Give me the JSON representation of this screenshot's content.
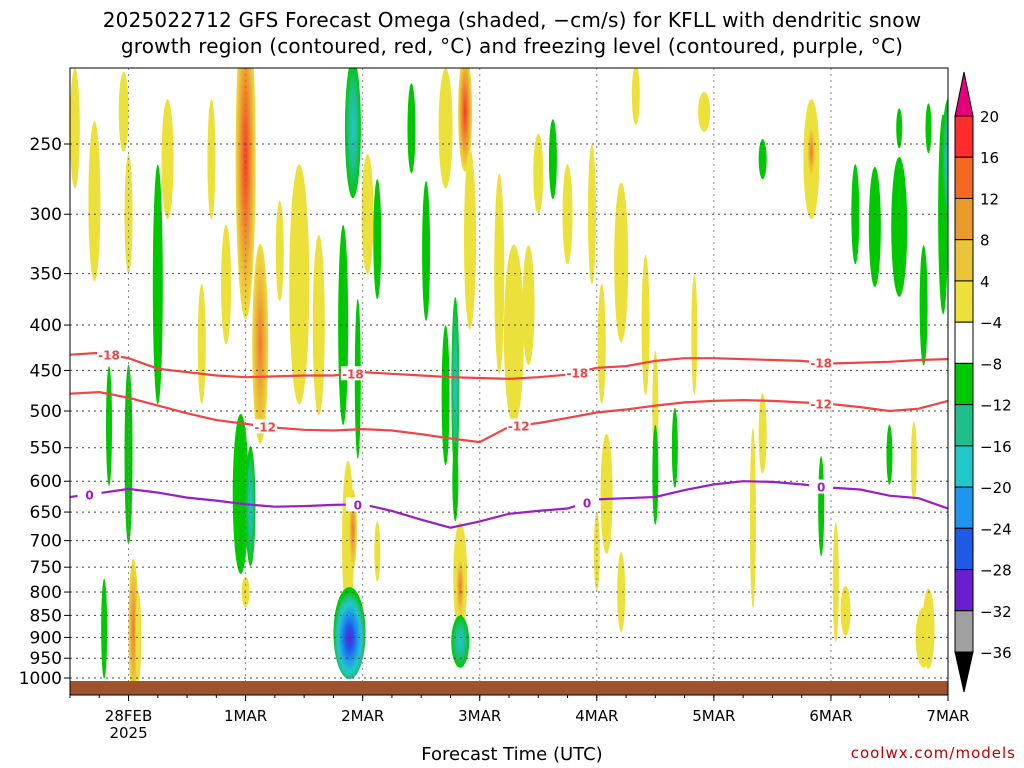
{
  "title_line1": "2025022712 GFS Forecast Omega (shaded, −cm/s) for KFLL with dendritic snow",
  "title_line2": "growth region (contoured, red, °C) and freezing level (contoured, purple, °C)",
  "xlabel": "Forecast Time (UTC)",
  "credit": "coolwx.com/models",
  "chart_data": {
    "type": "heatmap",
    "y_axis": {
      "label": "",
      "scale": "log-pressure",
      "reversed": true,
      "range_hpa": [
        1030,
        200
      ],
      "ticks": [
        250,
        300,
        350,
        400,
        450,
        500,
        550,
        600,
        650,
        700,
        750,
        800,
        850,
        900,
        950,
        1000
      ]
    },
    "x_axis": {
      "label": "Forecast Time (UTC)",
      "ticks": [
        {
          "label": "28FEB",
          "sublabel": "2025",
          "hours": 12
        },
        {
          "label": "1MAR",
          "sublabel": "",
          "hours": 36
        },
        {
          "label": "2MAR",
          "sublabel": "",
          "hours": 60
        },
        {
          "label": "3MAR",
          "sublabel": "",
          "hours": 84
        },
        {
          "label": "4MAR",
          "sublabel": "",
          "hours": 108
        },
        {
          "label": "5MAR",
          "sublabel": "",
          "hours": 132
        },
        {
          "label": "6MAR",
          "sublabel": "",
          "hours": 156
        },
        {
          "label": "7MAR",
          "sublabel": "",
          "hours": 180
        }
      ],
      "range_hours": [
        0,
        180
      ]
    },
    "grid": true,
    "colorbar": {
      "position": "right",
      "labels": [
        "20",
        "16",
        "12",
        "8",
        "4",
        "−4",
        "−8",
        "−12",
        "−16",
        "−20",
        "−24",
        "−28",
        "−32",
        "−36"
      ],
      "colors": [
        "#ff2d2d",
        "#f26a22",
        "#e89a2c",
        "#ecc43a",
        "#ece13a",
        "#ffffff",
        "#00c800",
        "#1fbe8a",
        "#22c8c8",
        "#1e96f0",
        "#1e5ae6",
        "#6a1ecf",
        "#9a14b4",
        "#a0a0a0"
      ],
      "over_color": "#e6007a",
      "under_color": "#000000"
    },
    "contours": [
      {
        "name": "-18",
        "color": "#f04444",
        "label_hours": [
          8,
          58,
          104,
          154
        ],
        "points": [
          [
            0,
            432
          ],
          [
            6,
            430
          ],
          [
            12,
            436
          ],
          [
            18,
            448
          ],
          [
            24,
            452
          ],
          [
            30,
            456
          ],
          [
            36,
            458
          ],
          [
            42,
            457
          ],
          [
            48,
            456
          ],
          [
            54,
            456
          ],
          [
            60,
            452
          ],
          [
            66,
            454
          ],
          [
            72,
            456
          ],
          [
            78,
            458
          ],
          [
            84,
            459
          ],
          [
            90,
            460
          ],
          [
            96,
            458
          ],
          [
            102,
            455
          ],
          [
            108,
            447
          ],
          [
            114,
            445
          ],
          [
            120,
            439
          ],
          [
            126,
            436
          ],
          [
            132,
            436
          ],
          [
            138,
            437
          ],
          [
            144,
            438
          ],
          [
            150,
            439
          ],
          [
            156,
            442
          ],
          [
            162,
            441
          ],
          [
            168,
            440
          ],
          [
            174,
            438
          ],
          [
            180,
            437
          ]
        ]
      },
      {
        "name": "-12",
        "color": "#f04444",
        "label_hours": [
          40,
          92,
          154
        ],
        "points": [
          [
            0,
            478
          ],
          [
            6,
            476
          ],
          [
            12,
            483
          ],
          [
            18,
            493
          ],
          [
            24,
            503
          ],
          [
            30,
            512
          ],
          [
            36,
            517
          ],
          [
            42,
            522
          ],
          [
            48,
            525
          ],
          [
            54,
            526
          ],
          [
            60,
            524
          ],
          [
            66,
            526
          ],
          [
            72,
            531
          ],
          [
            78,
            537
          ],
          [
            84,
            542
          ],
          [
            90,
            521
          ],
          [
            96,
            516
          ],
          [
            102,
            509
          ],
          [
            108,
            502
          ],
          [
            114,
            498
          ],
          [
            120,
            493
          ],
          [
            126,
            489
          ],
          [
            132,
            487
          ],
          [
            138,
            486
          ],
          [
            144,
            487
          ],
          [
            150,
            489
          ],
          [
            156,
            491
          ],
          [
            162,
            495
          ],
          [
            168,
            500
          ],
          [
            174,
            497
          ],
          [
            180,
            487
          ]
        ]
      },
      {
        "name": "0",
        "color": "#9a1ec8",
        "label_hours": [
          4,
          59,
          106,
          154
        ],
        "points": [
          [
            0,
            625
          ],
          [
            6,
            619
          ],
          [
            12,
            612
          ],
          [
            18,
            618
          ],
          [
            24,
            626
          ],
          [
            30,
            631
          ],
          [
            36,
            637
          ],
          [
            42,
            641
          ],
          [
            48,
            640
          ],
          [
            54,
            638
          ],
          [
            60,
            637
          ],
          [
            66,
            648
          ],
          [
            72,
            663
          ],
          [
            78,
            677
          ],
          [
            84,
            666
          ],
          [
            90,
            653
          ],
          [
            96,
            648
          ],
          [
            102,
            644
          ],
          [
            108,
            629
          ],
          [
            114,
            627
          ],
          [
            120,
            625
          ],
          [
            126,
            614
          ],
          [
            132,
            605
          ],
          [
            138,
            600
          ],
          [
            144,
            601
          ],
          [
            150,
            605
          ],
          [
            156,
            610
          ],
          [
            162,
            613
          ],
          [
            168,
            623
          ],
          [
            174,
            627
          ],
          [
            180,
            644
          ]
        ]
      }
    ]
  }
}
